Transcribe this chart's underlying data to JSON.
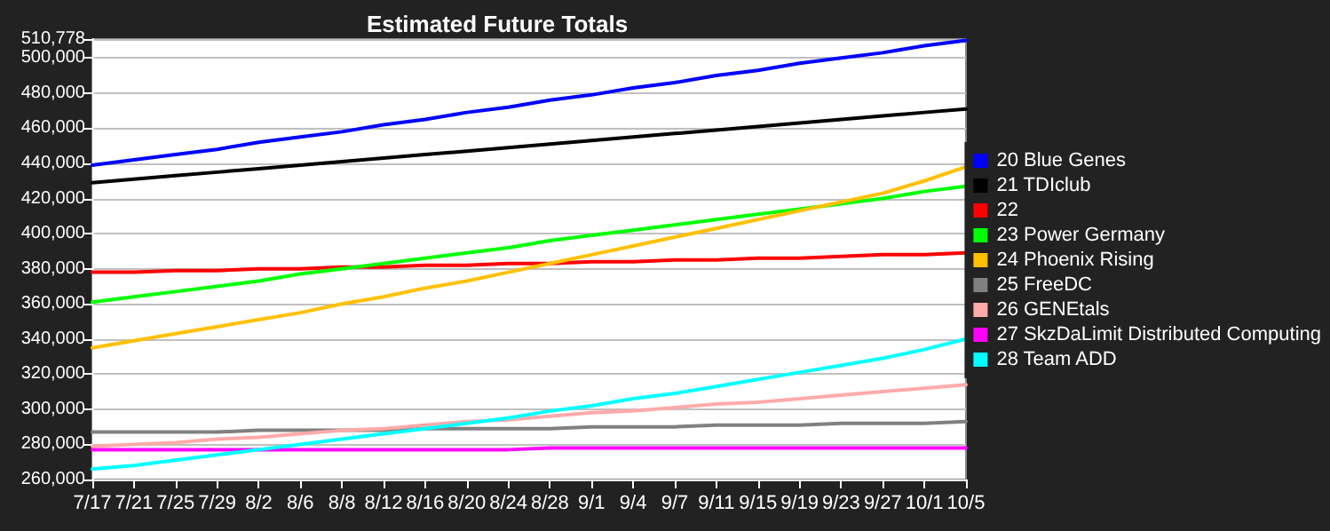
{
  "chart_data": {
    "type": "line",
    "title": "Estimated Future Totals",
    "categories": [
      "7/17",
      "7/21",
      "7/25",
      "7/29",
      "8/2",
      "8/6",
      "8/8",
      "8/12",
      "8/16",
      "8/20",
      "8/24",
      "8/28",
      "9/1",
      "9/4",
      "9/7",
      "9/11",
      "9/15",
      "9/19",
      "9/23",
      "9/27",
      "10/1",
      "10/5"
    ],
    "series": [
      {
        "name": "20 Blue Genes",
        "color": "#0000ff",
        "values": [
          439000,
          442000,
          445000,
          448000,
          452000,
          455000,
          458000,
          462000,
          465000,
          469000,
          472000,
          476000,
          479000,
          483000,
          486000,
          490000,
          493000,
          497000,
          500000,
          503000,
          507000,
          510000
        ]
      },
      {
        "name": "21 TDIclub",
        "color": "#000000",
        "values": [
          429000,
          431000,
          433000,
          435000,
          437000,
          439000,
          441000,
          443000,
          445000,
          447000,
          449000,
          451000,
          453000,
          455000,
          457000,
          459000,
          461000,
          463000,
          465000,
          467000,
          469000,
          471000
        ]
      },
      {
        "name": "22",
        "color": "#ff0000",
        "values": [
          378000,
          378000,
          379000,
          379000,
          380000,
          380000,
          381000,
          381000,
          382000,
          382000,
          383000,
          383000,
          384000,
          384000,
          385000,
          385000,
          386000,
          386000,
          387000,
          388000,
          388000,
          389000
        ]
      },
      {
        "name": "23 Power Germany",
        "color": "#00ff00",
        "values": [
          361000,
          364000,
          367000,
          370000,
          373000,
          377000,
          380000,
          383000,
          386000,
          389000,
          392000,
          396000,
          399000,
          402000,
          405000,
          408000,
          411000,
          414000,
          417000,
          420000,
          424000,
          427000
        ]
      },
      {
        "name": "24 Phoenix Rising",
        "color": "#ffc000",
        "values": [
          335000,
          339000,
          343000,
          347000,
          351000,
          355000,
          360000,
          364000,
          369000,
          373000,
          378000,
          383000,
          388000,
          393000,
          398000,
          403000,
          408000,
          413000,
          418000,
          423000,
          430000,
          438000
        ]
      },
      {
        "name": "25 FreeDC",
        "color": "#808080",
        "values": [
          287000,
          287000,
          287000,
          287000,
          288000,
          288000,
          288000,
          288000,
          289000,
          289000,
          289000,
          289000,
          290000,
          290000,
          290000,
          291000,
          291000,
          291000,
          292000,
          292000,
          292000,
          293000
        ]
      },
      {
        "name": "26 GENEtals",
        "color": "#ffaaaa",
        "values": [
          279000,
          280000,
          281000,
          283000,
          284000,
          286000,
          288000,
          289000,
          291000,
          293000,
          294000,
          296000,
          298000,
          299000,
          301000,
          303000,
          304000,
          306000,
          308000,
          310000,
          312000,
          314000
        ]
      },
      {
        "name": "27 SkzDaLimit Distributed Computing",
        "color": "#ff00ff",
        "values": [
          277000,
          277000,
          277000,
          277000,
          277000,
          277000,
          277000,
          277000,
          277000,
          277000,
          277000,
          278000,
          278000,
          278000,
          278000,
          278000,
          278000,
          278000,
          278000,
          278000,
          278000,
          278000
        ]
      },
      {
        "name": "28 Team ADD",
        "color": "#00ffff",
        "values": [
          266000,
          268000,
          271000,
          274000,
          277000,
          280000,
          283000,
          286000,
          289000,
          292000,
          295000,
          299000,
          302000,
          306000,
          309000,
          313000,
          317000,
          321000,
          325000,
          329000,
          334000,
          340000
        ]
      }
    ],
    "ylim": [
      260000,
      510778
    ],
    "yticks": [
      {
        "value": 260000,
        "label": "260,000"
      },
      {
        "value": 280000,
        "label": "280,000"
      },
      {
        "value": 300000,
        "label": "300,000"
      },
      {
        "value": 320000,
        "label": "320,000"
      },
      {
        "value": 340000,
        "label": "340,000"
      },
      {
        "value": 360000,
        "label": "360,000"
      },
      {
        "value": 380000,
        "label": "380,000"
      },
      {
        "value": 400000,
        "label": "400,000"
      },
      {
        "value": 420000,
        "label": "420,000"
      },
      {
        "value": 440000,
        "label": "440,000"
      },
      {
        "value": 460000,
        "label": "460,000"
      },
      {
        "value": 480000,
        "label": "480,000"
      },
      {
        "value": 500000,
        "label": "500,000"
      },
      {
        "value": 510778,
        "label": "510,778"
      }
    ],
    "grid": "y",
    "legend": "right",
    "marker": "none",
    "line_style": "solid"
  }
}
